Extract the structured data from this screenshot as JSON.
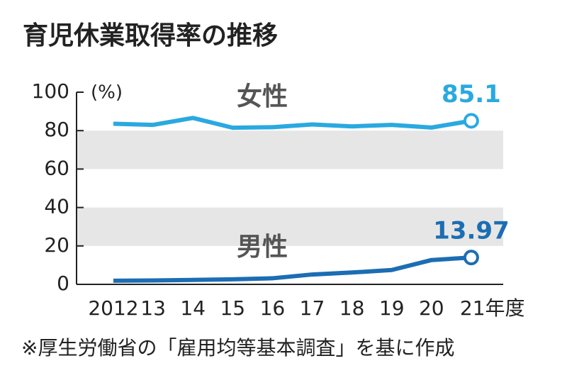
{
  "chart_data": {
    "type": "line",
    "title": "育児休業取得率の推移",
    "y_unit": "(%)",
    "categories": [
      "2012",
      "13",
      "14",
      "15",
      "16",
      "17",
      "18",
      "19",
      "20",
      "21年度"
    ],
    "series": [
      {
        "name": "女性",
        "color": "#2aa9e0",
        "values": [
          83.6,
          83.0,
          86.6,
          81.5,
          81.8,
          83.2,
          82.2,
          83.0,
          81.6,
          85.1
        ]
      },
      {
        "name": "男性",
        "color": "#1c6db3",
        "values": [
          1.89,
          2.03,
          2.3,
          2.65,
          3.16,
          5.14,
          6.16,
          7.48,
          12.65,
          13.97
        ]
      }
    ],
    "ylim": [
      0,
      100
    ],
    "yticks": [
      0,
      20,
      40,
      60,
      80,
      100
    ],
    "source": "※厚生労働省の「雇用均等基本調査」を基に作成"
  }
}
